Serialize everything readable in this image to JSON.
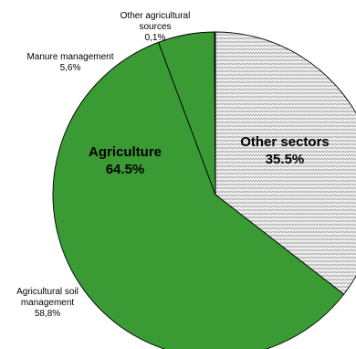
{
  "chart_data": {
    "type": "pie",
    "slices": [
      {
        "label": "Other sectors 35.5%",
        "value": 35.5,
        "color": "#e6e6e6",
        "pattern": "zigzag"
      },
      {
        "label": "Agricultural soil management 58,8%",
        "value": 58.8,
        "color": "#3a9a34"
      },
      {
        "label": "Manure management 5,6%",
        "value": 5.6,
        "color": "#3a9a34"
      },
      {
        "label": "Other agricultural sources 0,1%",
        "value": 0.1,
        "color": "#3a9a34"
      }
    ],
    "group_label": "Agriculture 64.5%",
    "labels": {
      "other_sectors": [
        "Other sectors",
        "35.5%"
      ],
      "agriculture": [
        "Agriculture",
        "64.5%"
      ],
      "other_agri": [
        "Other agricultural",
        "sources",
        "0,1%"
      ],
      "manure": [
        "Manure management",
        "5,6%"
      ],
      "soil": [
        "Agricultural soil",
        "management",
        "58,8%"
      ]
    },
    "start_angle_deg": 0,
    "direction": "clockwise"
  }
}
